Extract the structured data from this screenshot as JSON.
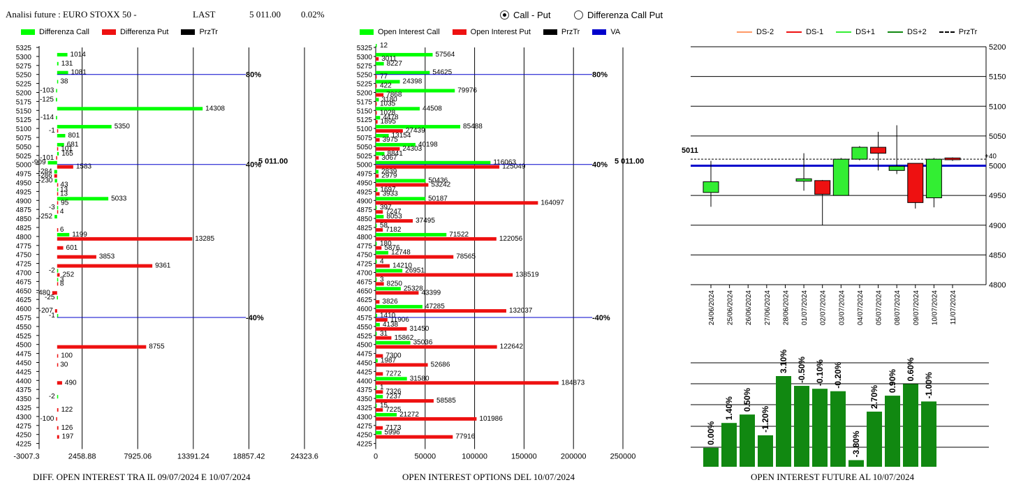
{
  "header": {
    "title": "Analisi future : EURO STOXX 50 -",
    "last_label": "LAST",
    "last_value": "5 011.00",
    "change": "0.02%"
  },
  "radios": [
    {
      "label": "Call - Put",
      "selected": true
    },
    {
      "label": "Differenza Call Put",
      "selected": false
    }
  ],
  "legends": {
    "left": [
      {
        "label": "Differenza Call",
        "color": "#00ff00"
      },
      {
        "label": "Differenza Put",
        "color": "#ee1111"
      },
      {
        "label": "PrzTr",
        "color": "#000000"
      }
    ],
    "middle": [
      {
        "label": "Open Interest Call",
        "color": "#00ff00"
      },
      {
        "label": "Open Interest Put",
        "color": "#ee1111"
      },
      {
        "label": "PrzTr",
        "color": "#000000"
      },
      {
        "label": "VA",
        "color": "#0000cc"
      }
    ],
    "right": [
      {
        "label": "DS-2",
        "color": "#ff9966"
      },
      {
        "label": "DS-1",
        "color": "#ee1111"
      },
      {
        "label": "DS+1",
        "color": "#33ee33"
      },
      {
        "label": "DS+2",
        "color": "#118811"
      },
      {
        "label": "PrzTr",
        "color": "#000000"
      }
    ]
  },
  "footers": {
    "left": "DIFF. OPEN INTEREST TRA IL 09/07/2024 E 10/07/2024",
    "middle": "OPEN INTEREST OPTIONS DEL 10/07/2024",
    "right": "OPEN INTEREST FUTURE AL 10/07/2024"
  },
  "chart_data": [
    {
      "type": "bar",
      "orientation": "horizontal",
      "categories": [
        "5325",
        "5300",
        "5275",
        "5250",
        "5225",
        "5200",
        "5175",
        "5150",
        "5125",
        "5100",
        "5075",
        "5050",
        "5025",
        "5000",
        "4975",
        "4950",
        "4925",
        "4900",
        "4875",
        "4850",
        "4825",
        "4800",
        "4775",
        "4750",
        "4725",
        "4700",
        "4675",
        "4650",
        "4625",
        "4600",
        "4575",
        "4550",
        "4525",
        "4500",
        "4475",
        "4450",
        "4425",
        "4400",
        "4375",
        "4350",
        "4325",
        "4300",
        "4275",
        "4250",
        "4225"
      ],
      "series": [
        {
          "name": "Differenza Call",
          "color": "#00ff00",
          "values": [
            null,
            1014,
            131,
            1081,
            38,
            -103,
            -125,
            14308,
            -114,
            5350,
            801,
            681,
            165,
            -909,
            -284,
            -230,
            13,
            5033,
            -3,
            -252,
            null,
            1199,
            null,
            null,
            null,
            -2,
            3,
            null,
            -25,
            null,
            -1,
            null,
            null,
            null,
            null,
            null,
            null,
            null,
            null,
            -2,
            null,
            null,
            null,
            null,
            null
          ],
          "labels": [
            "",
            "1014",
            "131",
            "1081",
            "38",
            "-103",
            "-125",
            "14308",
            "-114",
            "5350",
            "801",
            "681",
            "165",
            "-909",
            "-284",
            "-230",
            "13",
            "5033",
            "-3",
            "-252",
            "",
            "1199",
            "",
            "",
            "",
            "-2",
            "3",
            "",
            "-25",
            "",
            "-1",
            "",
            "",
            "",
            "",
            "",
            "",
            "",
            "",
            "-2",
            "",
            "",
            "",
            "",
            ""
          ]
        },
        {
          "name": "Differenza Put",
          "color": "#ee1111",
          "values": [
            null,
            null,
            null,
            null,
            null,
            null,
            null,
            null,
            null,
            -1,
            null,
            101,
            -101,
            1583,
            -286,
            43,
            13,
            95,
            4,
            null,
            6,
            13285,
            601,
            3853,
            9361,
            252,
            8,
            -480,
            null,
            -207,
            null,
            null,
            null,
            8755,
            100,
            30,
            null,
            490,
            null,
            null,
            122,
            -100,
            126,
            197,
            null
          ],
          "labels": [
            "",
            "",
            "",
            "",
            "",
            "",
            "",
            "",
            "",
            "-1",
            "",
            "101",
            "-101",
            "1583",
            "-286",
            "43",
            "13",
            "95",
            "4",
            "",
            "6",
            "13285",
            "601",
            "3853",
            "9361",
            "252",
            "8",
            "-480",
            "",
            "-207",
            "",
            "",
            "",
            "8755",
            "100",
            "30",
            "",
            "490",
            "",
            "",
            "122",
            "-100",
            "126",
            "197",
            ""
          ]
        }
      ],
      "annotations": [
        {
          "label": "80%",
          "at": "5250"
        },
        {
          "label": "40%",
          "at": "5000"
        },
        {
          "label": "-40%",
          "at": "4575"
        },
        {
          "label": "5 011.00",
          "at": "5000"
        }
      ],
      "xticks": [
        "-3007.3",
        "2458.88",
        "7925.06",
        "13391.24",
        "18857.42",
        "24323.6"
      ],
      "xlim": [
        -3007.3,
        24323.6
      ]
    },
    {
      "type": "bar",
      "orientation": "horizontal",
      "categories": [
        "5325",
        "5300",
        "5275",
        "5250",
        "5225",
        "5200",
        "5175",
        "5150",
        "5125",
        "5100",
        "5075",
        "5050",
        "5025",
        "5000",
        "4975",
        "4950",
        "4925",
        "4900",
        "4875",
        "4850",
        "4825",
        "4800",
        "4775",
        "4750",
        "4725",
        "4700",
        "4675",
        "4650",
        "4625",
        "4600",
        "4575",
        "4550",
        "4525",
        "4500",
        "4475",
        "4450",
        "4425",
        "4400",
        "4375",
        "4350",
        "4325",
        "4300",
        "4275",
        "4250",
        "4225"
      ],
      "series": [
        {
          "name": "Open Interest Call",
          "color": "#00ff00",
          "values": [
            12,
            57564,
            8227,
            54625,
            24398,
            79976,
            3180,
            44508,
            4478,
            85488,
            13154,
            40198,
            8841,
            116063,
            2839,
            50436,
            1697,
            50187,
            397,
            8053,
            58,
            71522,
            180,
            12748,
            4,
            26951,
            3,
            25328,
            null,
            47285,
            1410,
            4138,
            31,
            35036,
            null,
            1987,
            null,
            31580,
            1,
            7237,
            15,
            21272,
            null,
            5996,
            null
          ],
          "labels": [
            "12",
            "57564",
            "8227",
            "54625",
            "24398",
            "79976",
            "3180",
            "44508",
            "4478",
            "85488",
            "13154",
            "40198",
            "8841",
            "116063",
            "2839",
            "50436",
            "1697",
            "50187",
            "397",
            "8053",
            "58",
            "71522",
            "180",
            "12748",
            "4",
            "26951",
            "3",
            "25328",
            "",
            "47285",
            "1410",
            "4138",
            "31",
            "35036",
            "",
            "1987",
            "",
            "31580",
            "1",
            "7237",
            "15",
            "21272",
            "",
            "5996",
            ""
          ]
        },
        {
          "name": "Open Interest Put",
          "color": "#ee1111",
          "values": [
            null,
            3011,
            null,
            77,
            422,
            7868,
            1035,
            1028,
            1895,
            27439,
            3975,
            24303,
            3067,
            125049,
            2979,
            53242,
            3933,
            164097,
            7247,
            37495,
            7182,
            122056,
            5876,
            78565,
            14210,
            138519,
            8250,
            43399,
            3826,
            132037,
            11906,
            31450,
            15862,
            122642,
            7300,
            52686,
            7272,
            184873,
            7326,
            58585,
            7225,
            101986,
            7173,
            77916,
            null
          ],
          "labels": [
            "",
            "3011",
            "",
            "77",
            "422",
            "7868",
            "1035",
            "1028",
            "1895",
            "27439",
            "3975",
            "24303",
            "3067",
            "125049",
            "2979",
            "53242",
            "3933",
            "164097",
            "7247",
            "37495",
            "7182",
            "122056",
            "5876",
            "78565",
            "14210",
            "138519",
            "8250",
            "43399",
            "3826",
            "132037",
            "11906",
            "31450",
            "15862",
            "122642",
            "7300",
            "52686",
            "7272",
            "184873",
            "7326",
            "58585",
            "7225",
            "101986",
            "7173",
            "77916",
            ""
          ]
        }
      ],
      "annotations": [
        {
          "label": "80%",
          "at": "5250"
        },
        {
          "label": "40%",
          "at": "5000"
        },
        {
          "label": "-40%",
          "at": "4575"
        },
        {
          "label": "5 011.00",
          "at": "5000"
        }
      ],
      "xticks": [
        "0",
        "50000",
        "100000",
        "150000",
        "200000",
        "250000"
      ],
      "xlim": [
        0,
        250000
      ]
    },
    {
      "type": "candlestick",
      "categories": [
        "24/06/2024",
        "25/06/2024",
        "26/06/2024",
        "27/06/2024",
        "28/06/2024",
        "01/07/2024",
        "02/07/2024",
        "03/07/2024",
        "04/07/2024",
        "05/07/2024",
        "08/07/2024",
        "09/07/2024",
        "10/07/2024",
        "11/07/2024"
      ],
      "candles": [
        {
          "date": "24/06/2024",
          "open": 4955,
          "close": 4973,
          "high": 5008,
          "low": 4931,
          "color": "#33ee33"
        },
        {
          "date": "01/07/2024",
          "open": 4974,
          "close": 4978,
          "high": 5021,
          "low": 4958,
          "color": "#33ee33"
        },
        {
          "date": "02/07/2024",
          "open": 4975,
          "close": 4952,
          "high": 4976,
          "low": 4900,
          "color": "#ee1111"
        },
        {
          "date": "03/07/2024",
          "open": 4950,
          "close": 5011,
          "high": 5013,
          "low": 4950,
          "color": "#33ee33"
        },
        {
          "date": "04/07/2024",
          "open": 5011,
          "close": 5031,
          "high": 5033,
          "low": 5009,
          "color": "#33ee33"
        },
        {
          "date": "05/07/2024",
          "open": 5031,
          "close": 5021,
          "high": 5057,
          "low": 4992,
          "color": "#ee1111"
        },
        {
          "date": "08/07/2024",
          "open": 4992,
          "close": 4999,
          "high": 5068,
          "low": 4986,
          "color": "#33ee33"
        },
        {
          "date": "09/07/2024",
          "open": 5004,
          "close": 4938,
          "high": 5004,
          "low": 4928,
          "color": "#ee1111"
        },
        {
          "date": "10/07/2024",
          "open": 4946,
          "close": 5011,
          "high": 5013,
          "low": 4930,
          "color": "#33ee33"
        },
        {
          "date": "11/07/2024",
          "open": 5013,
          "close": 5010,
          "high": 5014,
          "low": 5008,
          "color": "#ee1111"
        }
      ],
      "va": 5000,
      "przTr": 5011,
      "left_label": "5011",
      "right_label": "+40",
      "yticks": [
        4800,
        4850,
        4900,
        4950,
        5000,
        5050,
        5100,
        5150,
        5200
      ],
      "ylim": [
        4800,
        5200
      ]
    },
    {
      "type": "bar",
      "categories": [
        "24/06/2024",
        "25/06/2024",
        "26/06/2024",
        "27/06/2024",
        "28/06/2024",
        "01/07/2024",
        "02/07/2024",
        "03/07/2024",
        "04/07/2024",
        "05/07/2024",
        "08/07/2024",
        "09/07/2024",
        "10/07/2024"
      ],
      "values": [
        0.0,
        1.4,
        0.5,
        -1.2,
        3.1,
        -0.5,
        -0.1,
        -0.2,
        -3.8,
        2.7,
        0.9,
        0.6,
        -1.0
      ],
      "relative_level": [
        0.209,
        0.483,
        0.576,
        0.347,
        1.0,
        0.892,
        0.86,
        0.833,
        0.073,
        0.608,
        0.784,
        0.912,
        0.72
      ],
      "labels": [
        "0.00%",
        "1.40%",
        "0.50%",
        "-1.20%",
        "3.10%",
        "-0.50%",
        "-0.10%",
        "-0.20%",
        "-3.80%",
        "2.70%",
        "0.90%",
        "0.60%",
        "-1.00%"
      ],
      "color": "#118811"
    }
  ]
}
